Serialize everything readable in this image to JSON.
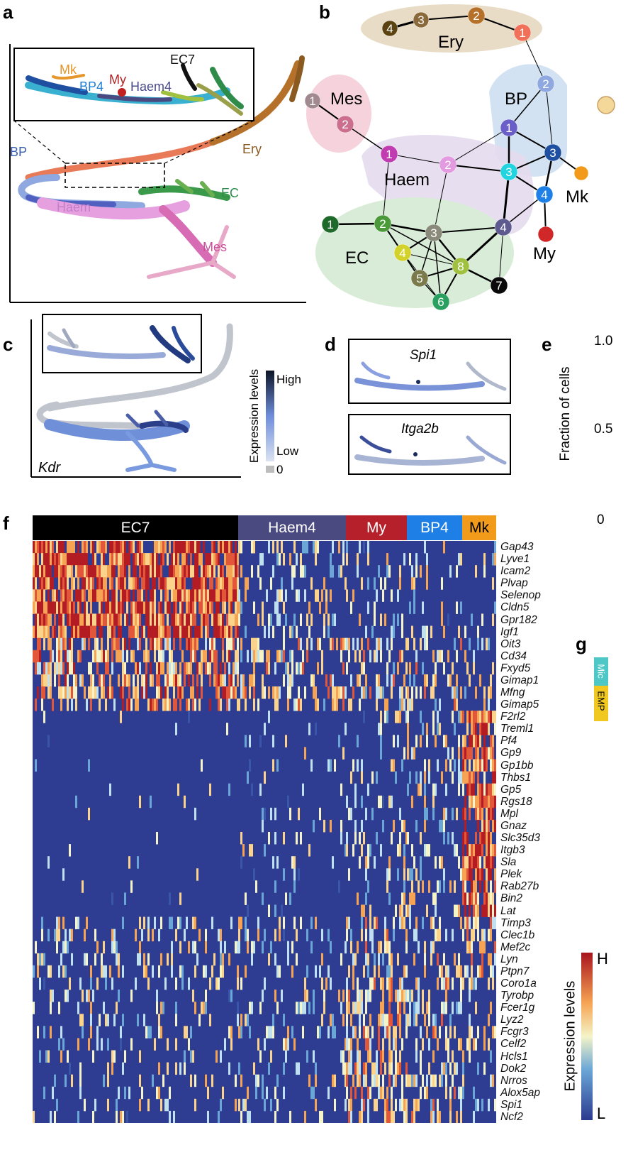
{
  "panels": {
    "a": "a",
    "b": "b",
    "c": "c",
    "d": "d",
    "e": "e",
    "f": "f",
    "g": "g"
  },
  "panel_a": {
    "labels": {
      "mk": "Mk",
      "bp4": "BP4",
      "my": "My",
      "haem4": "Haem4",
      "ec7": "EC7",
      "bp": "BP",
      "haem": "Haem",
      "ec": "EC",
      "ery": "Ery",
      "mes": "Mes"
    },
    "colors": {
      "ery": "#b5712a",
      "ec": "#2e8b4a",
      "mes": "#c94f9a",
      "bp": "#3a5fb0",
      "haem": "#c47fc8",
      "mk": "#e6962a",
      "my": "#b22222",
      "ec7": "#111111",
      "bp4": "#1e7fd6",
      "haem4": "#4a4a8a"
    }
  },
  "panel_b": {
    "groups": {
      "ery": "Ery",
      "mes": "Mes",
      "bp": "BP",
      "haem": "Haem",
      "ec": "EC",
      "mk": "Mk",
      "my": "My"
    },
    "nodes": [
      {
        "id": "ery4",
        "label": "4",
        "color": "#5a4310"
      },
      {
        "id": "ery3",
        "label": "3",
        "color": "#8a6a3a"
      },
      {
        "id": "ery2",
        "label": "2",
        "color": "#b5712a"
      },
      {
        "id": "ery1",
        "label": "1",
        "color": "#f0705a"
      },
      {
        "id": "mes1",
        "label": "1",
        "color": "#a08a90"
      },
      {
        "id": "mes2",
        "label": "2",
        "color": "#cc6f8f"
      },
      {
        "id": "bp2",
        "label": "2",
        "color": "#8fa8e0"
      },
      {
        "id": "bp1",
        "label": "1",
        "color": "#6a5fc8"
      },
      {
        "id": "bp3",
        "label": "3",
        "color": "#1e4fa0"
      },
      {
        "id": "haem1",
        "label": "1",
        "color": "#c03cb0"
      },
      {
        "id": "haem2",
        "label": "2",
        "color": "#e39ae0"
      },
      {
        "id": "haem3",
        "label": "3",
        "color": "#22d4e0"
      },
      {
        "id": "haem4",
        "label": "4",
        "color": "#5c5a8e"
      },
      {
        "id": "bp4",
        "label": "4",
        "color": "#1e7fe6"
      },
      {
        "id": "mk",
        "label": "",
        "color": "#f29a1a"
      },
      {
        "id": "my",
        "label": "",
        "color": "#d02828"
      },
      {
        "id": "ec1",
        "label": "1",
        "color": "#1e6a2a"
      },
      {
        "id": "ec2",
        "label": "2",
        "color": "#4a9a3a"
      },
      {
        "id": "ec3",
        "label": "3",
        "color": "#8a8a7a"
      },
      {
        "id": "ec4",
        "label": "4",
        "color": "#d2d22a"
      },
      {
        "id": "ec5",
        "label": "5",
        "color": "#7a7a4a"
      },
      {
        "id": "ec6",
        "label": "6",
        "color": "#2aa060"
      },
      {
        "id": "ec7",
        "label": "7",
        "color": "#0a0a0a"
      },
      {
        "id": "ec8",
        "label": "8",
        "color": "#a0c040"
      }
    ]
  },
  "panel_c": {
    "gene": "Kdr",
    "legend_title": "Expression levels",
    "high": "High",
    "low": "Low",
    "zero": "0"
  },
  "panel_d": {
    "genes": [
      "Spi1",
      "Itga2b"
    ]
  },
  "panel_e": {
    "yaxis_label": "Fraction of cells",
    "ticks": [
      "1.0",
      "0.5",
      "0"
    ]
  },
  "panel_f": {
    "groups": [
      {
        "label": "EC7",
        "color": "#000000"
      },
      {
        "label": "Haem4",
        "color": "#4a4a80"
      },
      {
        "label": "My",
        "color": "#b5202a"
      },
      {
        "label": "BP4",
        "color": "#1e7fe6"
      },
      {
        "label": "Mk",
        "color": "#f29a1a"
      }
    ],
    "genes": [
      "Gap43",
      "Lyve1",
      "Icam2",
      "Plvap",
      "Selenop",
      "Cldn5",
      "Gpr182",
      "Igf1",
      "Oit3",
      "Cd34",
      "Fxyd5",
      "Gimap1",
      "Mfng",
      "Gimap5",
      "F2rl2",
      "Treml1",
      "Pf4",
      "Gp9",
      "Gp1bb",
      "Thbs1",
      "Gp5",
      "Rgs18",
      "Mpl",
      "Gnaz",
      "Slc35d3",
      "Itgb3",
      "Sla",
      "Plek",
      "Rab27b",
      "Bin2",
      "Lat",
      "Timp3",
      "Clec1b",
      "Mef2c",
      "Lyn",
      "Ptpn7",
      "Coro1a",
      "Tyrobp",
      "Fcer1g",
      "Lyz2",
      "Fcgr3",
      "Celf2",
      "Hcls1",
      "Dok2",
      "Nrros",
      "Alox5ap",
      "Spi1",
      "Ncf2"
    ],
    "colorbar_title": "Expression levels",
    "colorbar_high": "H",
    "colorbar_low": "L"
  },
  "panel_g": {
    "chips": [
      "Mic",
      "EMP"
    ]
  }
}
